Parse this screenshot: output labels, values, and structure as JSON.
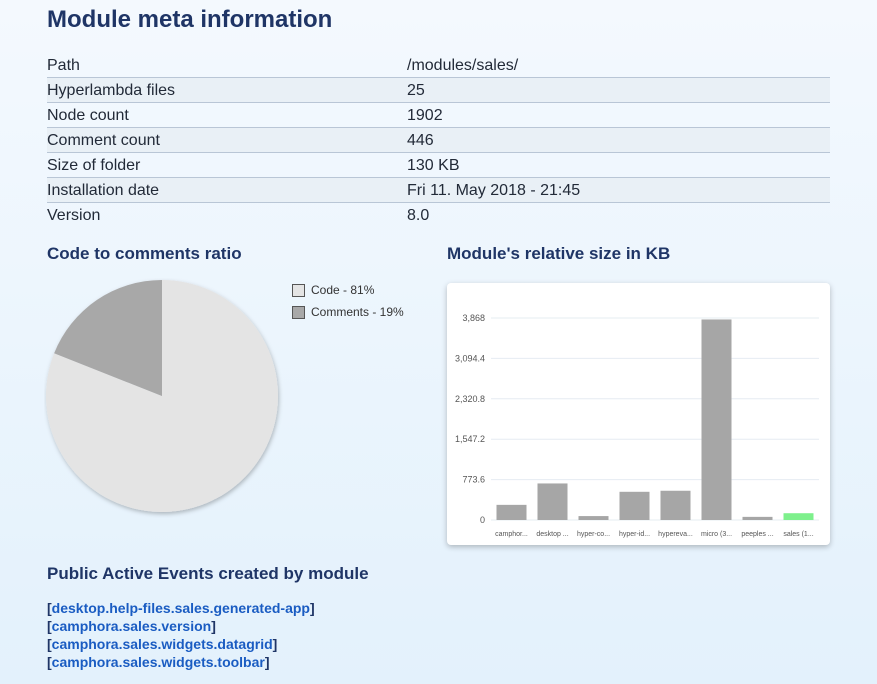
{
  "page": {
    "title": "Module meta information"
  },
  "meta": [
    {
      "key": "Path",
      "value": "/modules/sales/"
    },
    {
      "key": "Hyperlambda files",
      "value": "25"
    },
    {
      "key": "Node count",
      "value": "1902"
    },
    {
      "key": "Comment count",
      "value": "446"
    },
    {
      "key": "Size of folder",
      "value": "130 KB"
    },
    {
      "key": "Installation date",
      "value": "Fri 11. May 2018 - 21:45"
    },
    {
      "key": "Version",
      "value": "8.0"
    }
  ],
  "sections": {
    "ratio_title": "Code to comments ratio",
    "size_title": "Module's relative size in KB",
    "events_title": "Public Active Events created by module"
  },
  "chart_data": [
    {
      "type": "pie",
      "title": "Code to comments ratio",
      "slices": [
        {
          "label": "Code - 81%",
          "value": 81,
          "color": "#e4e4e4"
        },
        {
          "label": "Comments - 19%",
          "value": 19,
          "color": "#a8a8a8"
        }
      ],
      "legend": "top-right"
    },
    {
      "type": "bar",
      "title": "Module's relative size in KB",
      "categories": [
        "camphor...",
        "desktop ...",
        "hyper-co...",
        "hyper-id...",
        "hypereva...",
        "micro (3...",
        "peeples ...",
        "sales (1..."
      ],
      "values": [
        290,
        700,
        75,
        540,
        560,
        3840,
        60,
        130
      ],
      "colors": [
        "#a6a6a6",
        "#a6a6a6",
        "#a6a6a6",
        "#a6a6a6",
        "#a6a6a6",
        "#a6a6a6",
        "#a6a6a6",
        "#7ef08c"
      ],
      "yticks": [
        "0",
        "773.6",
        "1,547.2",
        "2,320.8",
        "3,094.4",
        "3,868"
      ],
      "ylim": [
        0,
        3868
      ],
      "grid": true
    }
  ],
  "events": [
    "desktop.help-files.sales.generated-app",
    "camphora.sales.version",
    "camphora.sales.widgets.datagrid",
    "camphora.sales.widgets.toolbar"
  ]
}
